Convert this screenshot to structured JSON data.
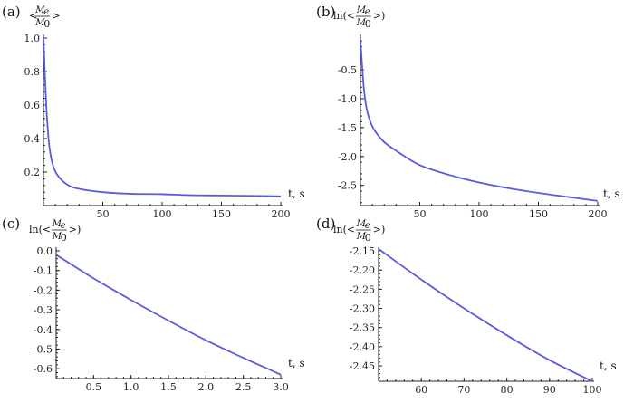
{
  "chart_data": [
    {
      "panel": "(a)",
      "type": "line",
      "ylabel": {
        "prefix": "<",
        "numerator": "M",
        "numerator_sub": "e",
        "denominator": "M",
        "denominator_sub": "0",
        "suffix": ">"
      },
      "xlabel": "t, s",
      "xlim": [
        0,
        200
      ],
      "ylim": [
        0.0,
        1.0
      ],
      "xticks": [
        50,
        100,
        150,
        200
      ],
      "yticks": [
        0.2,
        0.4,
        0.6,
        0.8,
        1.0
      ],
      "xtick_labels": [
        "50",
        "100",
        "150",
        "200"
      ],
      "ytick_labels": [
        "0.2",
        "0.4",
        "0.6",
        "0.8",
        "1.0"
      ],
      "series": [
        {
          "x": [
            0,
            1,
            2,
            3,
            5,
            8,
            12,
            20,
            30,
            50,
            75,
            100,
            125,
            150,
            175,
            200
          ],
          "y": [
            1.0,
            0.82,
            0.66,
            0.52,
            0.35,
            0.24,
            0.18,
            0.125,
            0.1,
            0.08,
            0.07,
            0.068,
            0.062,
            0.06,
            0.058,
            0.055
          ]
        }
      ],
      "color": "#5a5ae0"
    },
    {
      "panel": "(b)",
      "type": "line",
      "ylabel": {
        "prefix": "ln(<",
        "numerator": "M",
        "numerator_sub": "e",
        "denominator": "M",
        "denominator_sub": "0",
        "suffix": ">)"
      },
      "xlabel": "t, s",
      "xlim": [
        0,
        200
      ],
      "ylim": [
        -2.85,
        0.05
      ],
      "xticks": [
        50,
        100,
        150,
        200
      ],
      "yticks": [
        -0.5,
        -1.0,
        -1.5,
        -2.0,
        -2.5
      ],
      "xtick_labels": [
        "50",
        "100",
        "150",
        "200"
      ],
      "ytick_labels": [
        "-0.5",
        "-1.0",
        "-1.5",
        "-2.0",
        "-2.5"
      ],
      "series": [
        {
          "x": [
            0,
            1,
            2,
            3,
            5,
            8,
            12,
            20,
            30,
            50,
            75,
            100,
            125,
            150,
            175,
            200
          ],
          "y": [
            0.0,
            -0.3,
            -0.6,
            -0.85,
            -1.15,
            -1.38,
            -1.55,
            -1.75,
            -1.9,
            -2.15,
            -2.32,
            -2.45,
            -2.55,
            -2.63,
            -2.7,
            -2.77
          ]
        }
      ],
      "color": "#5a5ae0"
    },
    {
      "panel": "(c)",
      "type": "line",
      "ylabel": {
        "prefix": "ln(<",
        "numerator": "M",
        "numerator_sub": "e",
        "denominator": "M",
        "denominator_sub": "0",
        "suffix": ">)"
      },
      "xlabel": "t, s",
      "xlim": [
        0,
        3.0
      ],
      "ylim": [
        -0.65,
        0.0
      ],
      "xticks": [
        0.5,
        1.0,
        1.5,
        2.0,
        2.5,
        3.0
      ],
      "yticks": [
        0.0,
        -0.1,
        -0.2,
        -0.3,
        -0.4,
        -0.5,
        -0.6
      ],
      "xtick_labels": [
        "0.5",
        "1.0",
        "1.5",
        "2.0",
        "2.5",
        "3.0"
      ],
      "ytick_labels": [
        "0.0",
        "-0.1",
        "-0.2",
        "-0.3",
        "-0.4",
        "-0.5",
        "-0.6"
      ],
      "series": [
        {
          "x": [
            0,
            0.5,
            1.0,
            1.5,
            2.0,
            2.5,
            3.0
          ],
          "y": [
            -0.02,
            -0.14,
            -0.25,
            -0.355,
            -0.455,
            -0.545,
            -0.63
          ]
        }
      ],
      "color": "#5a5ae0"
    },
    {
      "panel": "(d)",
      "type": "line",
      "ylabel": {
        "prefix": "ln(<",
        "numerator": "M",
        "numerator_sub": "e",
        "denominator": "M",
        "denominator_sub": "0",
        "suffix": ">)"
      },
      "xlabel": "t, s",
      "xlim": [
        50,
        100
      ],
      "ylim": [
        -2.49,
        -2.15
      ],
      "xticks": [
        60,
        70,
        80,
        90,
        100
      ],
      "yticks": [
        -2.15,
        -2.2,
        -2.25,
        -2.3,
        -2.35,
        -2.4,
        -2.45
      ],
      "xtick_labels": [
        "60",
        "70",
        "80",
        "90",
        "100"
      ],
      "ytick_labels": [
        "-2.15",
        "-2.20",
        "-2.25",
        "-2.30",
        "-2.35",
        "-2.40",
        "-2.45"
      ],
      "series": [
        {
          "x": [
            50,
            60,
            70,
            80,
            90,
            100
          ],
          "y": [
            -2.145,
            -2.225,
            -2.3,
            -2.37,
            -2.435,
            -2.49
          ]
        }
      ],
      "color": "#5a5ae0"
    }
  ]
}
